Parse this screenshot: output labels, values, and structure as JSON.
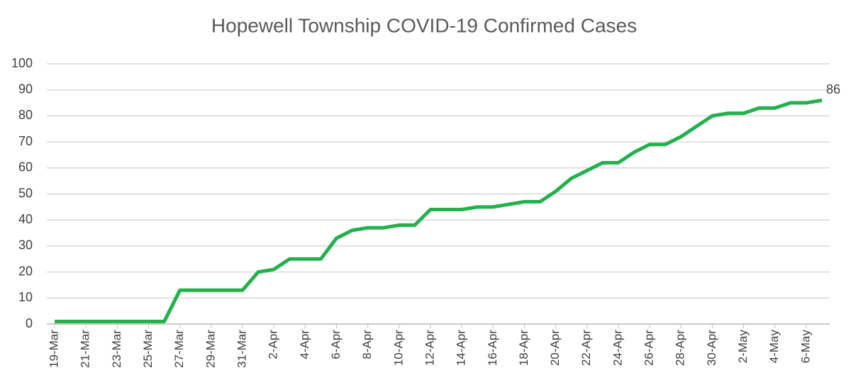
{
  "chart_data": {
    "type": "line",
    "title": "Hopewell Township COVID-19 Confirmed Cases",
    "categories": [
      "19-Mar",
      null,
      "21-Mar",
      null,
      "23-Mar",
      null,
      "25-Mar",
      null,
      "27-Mar",
      null,
      "29-Mar",
      null,
      "31-Mar",
      null,
      "2-Apr",
      null,
      "4-Apr",
      null,
      "6-Apr",
      null,
      "8-Apr",
      null,
      "10-Apr",
      null,
      "12-Apr",
      null,
      "14-Apr",
      null,
      "16-Apr",
      null,
      "18-Apr",
      null,
      "20-Apr",
      null,
      "22-Apr",
      null,
      "24-Apr",
      null,
      "26-Apr",
      null,
      "28-Apr",
      null,
      "30-Apr",
      null,
      "2-May",
      null,
      "4-May",
      null,
      "6-May",
      null
    ],
    "series": [
      {
        "name": "Confirmed Cases",
        "color": "#22b14c",
        "values": [
          1,
          1,
          1,
          1,
          1,
          1,
          1,
          1,
          13,
          13,
          13,
          13,
          13,
          20,
          21,
          25,
          25,
          25,
          33,
          36,
          37,
          37,
          38,
          38,
          44,
          44,
          44,
          45,
          45,
          46,
          47,
          47,
          51,
          56,
          59,
          62,
          62,
          66,
          69,
          69,
          72,
          76,
          80,
          81,
          81,
          83,
          83,
          85,
          85,
          86
        ]
      }
    ],
    "ylim": [
      0,
      100
    ],
    "yticks": [
      0,
      10,
      20,
      30,
      40,
      50,
      60,
      70,
      80,
      90,
      100
    ],
    "grid": true
  }
}
